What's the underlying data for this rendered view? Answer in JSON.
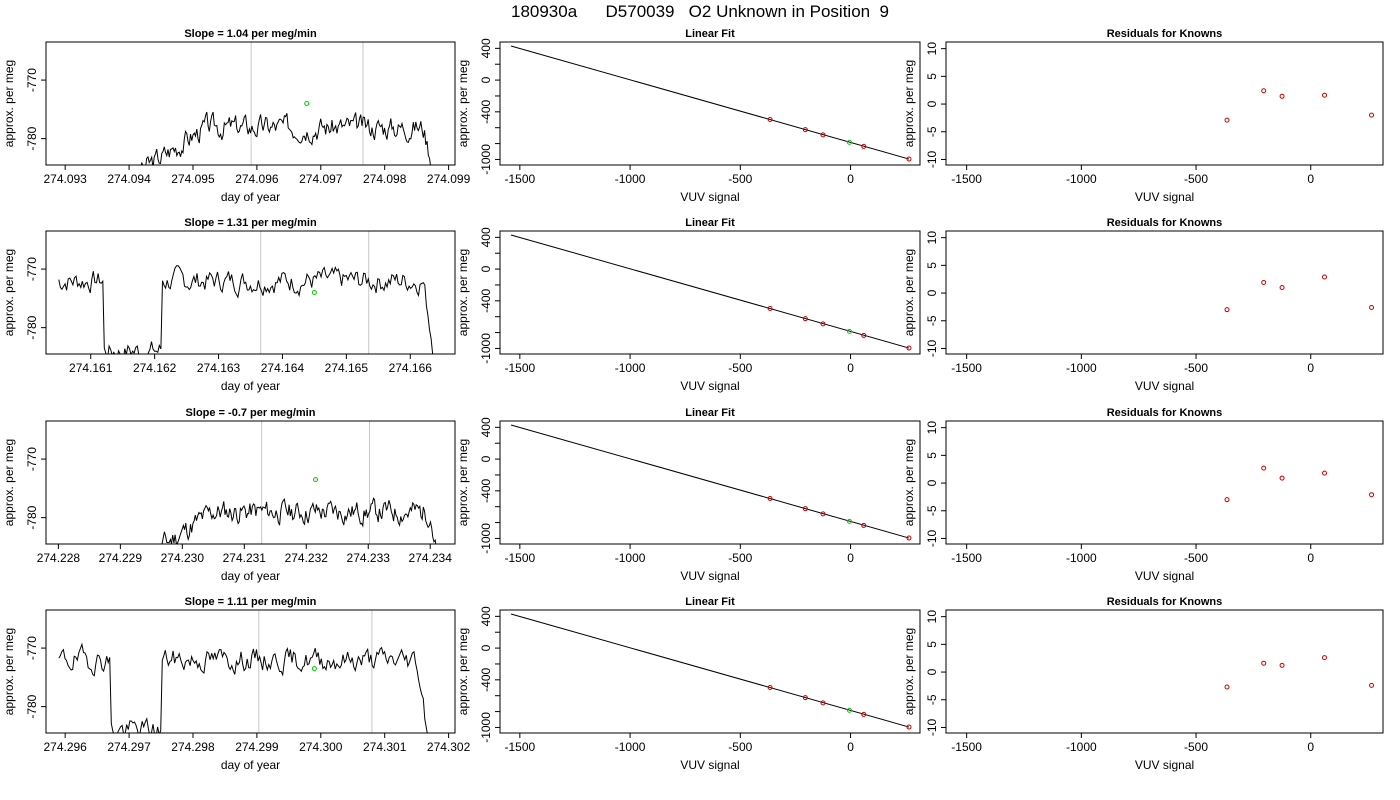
{
  "page_title": "180930a      D570039   O2 Unknown in Position  9",
  "colors": {
    "trace": "#000000",
    "marker": "#00cc00",
    "residual": "#cc0000",
    "gridline": "#c8c8c8"
  },
  "chart_data": [
    {
      "type": "line",
      "row": 0,
      "col": 0,
      "title": "Slope =  1.04  per meg/min",
      "xlabel": "day of year",
      "ylabel": "approx. per meg",
      "xlim": [
        274.0927,
        274.0991
      ],
      "ylim": [
        -784.5,
        -763.5
      ],
      "xticks": [
        274.093,
        274.094,
        274.095,
        274.096,
        274.097,
        274.098,
        274.099
      ],
      "xtick_labels": [
        "274.093",
        "274.094",
        "274.095",
        "274.096",
        "274.097",
        "274.098",
        "274.099"
      ],
      "yticks": [
        -770,
        -780
      ],
      "ytick_labels": [
        "-770",
        "-780"
      ],
      "vlines": [
        274.09591,
        274.09766
      ],
      "marker": {
        "x": 274.09678,
        "y": -774.0
      },
      "trace": {
        "start": 274.0941,
        "end": 274.0988,
        "base": -778,
        "slope": 600,
        "rise_to": 274.0952,
        "drop_from": 274.0986,
        "low": -786,
        "seed": 3
      }
    },
    {
      "type": "scatter",
      "row": 0,
      "col": 1,
      "title": "Linear Fit",
      "xlabel": "VUV signal",
      "ylabel": "approx. per meg",
      "xlim": [
        -1590,
        315
      ],
      "ylim": [
        -1070,
        480
      ],
      "xticks": [
        -1500,
        -1000,
        -500,
        0
      ],
      "xtick_labels": [
        "-1500",
        "-1000",
        "-500",
        "0"
      ],
      "yticks": [
        400,
        0,
        -400,
        -1000
      ],
      "ytick_labels": [
        "400",
        "0",
        "-400",
        "-1000"
      ],
      "yminor": [
        200,
        -200,
        -600,
        -800
      ],
      "line": {
        "x": [
          -1540,
          265
        ],
        "y": [
          430,
          -995
        ]
      },
      "points": {
        "x": [
          -365,
          -205,
          -125,
          60,
          265
        ],
        "y": [
          -497,
          -625,
          -690,
          -836,
          -995
        ]
      },
      "marker": {
        "x": -5,
        "y": -785
      }
    },
    {
      "type": "scatter",
      "row": 0,
      "col": 2,
      "title": "Residuals for Knowns",
      "xlabel": "VUV signal",
      "ylabel": "approx. per meg",
      "xlim": [
        -1590,
        315
      ],
      "ylim": [
        -11,
        11.2
      ],
      "xticks": [
        -1500,
        -1000,
        -500,
        0
      ],
      "xtick_labels": [
        "-1500",
        "-1000",
        "-500",
        "0"
      ],
      "yticks": [
        10,
        5,
        0,
        -5,
        -10
      ],
      "ytick_labels": [
        "10",
        "5",
        "0",
        "-5",
        "-10"
      ],
      "points": {
        "x": [
          -365,
          -205,
          -125,
          60,
          265
        ],
        "y": [
          -2.9,
          2.4,
          1.4,
          1.6,
          -2.0
        ]
      }
    },
    {
      "type": "line",
      "row": 1,
      "col": 0,
      "title": "Slope =  1.31  per meg/min",
      "xlabel": "day of year",
      "ylabel": "approx. per meg",
      "xlim": [
        274.1603,
        274.1667
      ],
      "ylim": [
        -784.5,
        -763.5
      ],
      "xticks": [
        274.161,
        274.162,
        274.163,
        274.164,
        274.165,
        274.166
      ],
      "xtick_labels": [
        "274.161",
        "274.162",
        "274.163",
        "274.164",
        "274.165",
        "274.166"
      ],
      "yticks": [
        -770,
        -780
      ],
      "ytick_labels": [
        "-770",
        "-780"
      ],
      "vlines": [
        274.16366,
        274.16535
      ],
      "marker": {
        "x": 274.1645,
        "y": -774.0
      },
      "trace": {
        "start": 274.1605,
        "end": 274.1664,
        "base": -772,
        "slope": 0,
        "dip_from": 274.1612,
        "dip_to": 274.1621,
        "dip_depth": -784,
        "drop_from": 274.1662,
        "low": -786,
        "seed": 7
      }
    },
    {
      "type": "scatter",
      "row": 1,
      "col": 1,
      "title": "Linear Fit",
      "xlabel": "VUV signal",
      "ylabel": "approx. per meg",
      "xlim": [
        -1590,
        315
      ],
      "ylim": [
        -1070,
        480
      ],
      "xticks": [
        -1500,
        -1000,
        -500,
        0
      ],
      "xtick_labels": [
        "-1500",
        "-1000",
        "-500",
        "0"
      ],
      "yticks": [
        400,
        0,
        -400,
        -1000
      ],
      "ytick_labels": [
        "400",
        "0",
        "-400",
        "-1000"
      ],
      "yminor": [
        200,
        -200,
        -600,
        -800
      ],
      "line": {
        "x": [
          -1540,
          265
        ],
        "y": [
          430,
          -995
        ]
      },
      "points": {
        "x": [
          -365,
          -205,
          -125,
          60,
          265
        ],
        "y": [
          -497,
          -625,
          -690,
          -836,
          -995
        ]
      },
      "marker": {
        "x": -5,
        "y": -785
      }
    },
    {
      "type": "scatter",
      "row": 1,
      "col": 2,
      "title": "Residuals for Knowns",
      "xlabel": "VUV signal",
      "ylabel": "approx. per meg",
      "xlim": [
        -1590,
        315
      ],
      "ylim": [
        -11,
        11.2
      ],
      "xticks": [
        -1500,
        -1000,
        -500,
        0
      ],
      "xtick_labels": [
        "-1500",
        "-1000",
        "-500",
        "0"
      ],
      "yticks": [
        10,
        5,
        0,
        -5,
        -10
      ],
      "ytick_labels": [
        "10",
        "5",
        "0",
        "-5",
        "-10"
      ],
      "points": {
        "x": [
          -365,
          -205,
          -125,
          60,
          265
        ],
        "y": [
          -3.0,
          1.9,
          1.0,
          2.9,
          -2.6
        ]
      }
    },
    {
      "type": "line",
      "row": 2,
      "col": 0,
      "title": "Slope =  -0.7  per meg/min",
      "xlabel": "day of year",
      "ylabel": "approx. per meg",
      "xlim": [
        274.2278,
        274.2344
      ],
      "ylim": [
        -784.5,
        -763.5
      ],
      "xticks": [
        274.228,
        274.229,
        274.23,
        274.231,
        274.232,
        274.233,
        274.234
      ],
      "xtick_labels": [
        "274.228",
        "274.229",
        "274.230",
        "274.231",
        "274.232",
        "274.233",
        "274.234"
      ],
      "yticks": [
        -770,
        -780
      ],
      "ytick_labels": [
        "-770",
        "-780"
      ],
      "vlines": [
        274.23128,
        274.23302
      ],
      "marker": {
        "x": 274.23215,
        "y": -773.5
      },
      "trace": {
        "start": 274.2295,
        "end": 274.2341,
        "base": -779,
        "slope": 700,
        "rise_to": 274.2305,
        "drop_from": 274.234,
        "low": -786,
        "seed": 11
      }
    },
    {
      "type": "scatter",
      "row": 2,
      "col": 1,
      "title": "Linear Fit",
      "xlabel": "VUV signal",
      "ylabel": "approx. per meg",
      "xlim": [
        -1590,
        315
      ],
      "ylim": [
        -1070,
        480
      ],
      "xticks": [
        -1500,
        -1000,
        -500,
        0
      ],
      "xtick_labels": [
        "-1500",
        "-1000",
        "-500",
        "0"
      ],
      "yticks": [
        400,
        0,
        -400,
        -1000
      ],
      "ytick_labels": [
        "400",
        "0",
        "-400",
        "-1000"
      ],
      "yminor": [
        200,
        -200,
        -600,
        -800
      ],
      "line": {
        "x": [
          -1540,
          265
        ],
        "y": [
          430,
          -995
        ]
      },
      "points": {
        "x": [
          -365,
          -205,
          -125,
          60,
          265
        ],
        "y": [
          -497,
          -625,
          -690,
          -836,
          -995
        ]
      },
      "marker": {
        "x": -5,
        "y": -785
      }
    },
    {
      "type": "scatter",
      "row": 2,
      "col": 2,
      "title": "Residuals for Knowns",
      "xlabel": "VUV signal",
      "ylabel": "approx. per meg",
      "xlim": [
        -1590,
        315
      ],
      "ylim": [
        -11,
        11.2
      ],
      "xticks": [
        -1500,
        -1000,
        -500,
        0
      ],
      "xtick_labels": [
        "-1500",
        "-1000",
        "-500",
        "0"
      ],
      "yticks": [
        10,
        5,
        0,
        -5,
        -10
      ],
      "ytick_labels": [
        "10",
        "5",
        "0",
        "-5",
        "-10"
      ],
      "points": {
        "x": [
          -365,
          -205,
          -125,
          60,
          265
        ],
        "y": [
          -3.0,
          2.7,
          0.9,
          1.8,
          -2.1
        ]
      }
    },
    {
      "type": "line",
      "row": 3,
      "col": 0,
      "title": "Slope =  1.11  per meg/min",
      "xlabel": "day of year",
      "ylabel": "approx. per meg",
      "xlim": [
        274.2957,
        274.3021
      ],
      "ylim": [
        -784.5,
        -763.5
      ],
      "xticks": [
        274.296,
        274.297,
        274.298,
        274.299,
        274.3,
        274.301,
        274.302
      ],
      "xtick_labels": [
        "274.296",
        "274.297",
        "274.298",
        "274.299",
        "274.300",
        "274.301",
        "274.302"
      ],
      "yticks": [
        -770,
        -780
      ],
      "ytick_labels": [
        "-770",
        "-780"
      ],
      "vlines": [
        274.29903,
        274.3008
      ],
      "marker": {
        "x": 274.2999,
        "y": -773.5
      },
      "trace": {
        "start": 274.2959,
        "end": 274.3017,
        "base": -772,
        "slope": 0,
        "dip_from": 274.2967,
        "dip_to": 274.2975,
        "dip_depth": -784,
        "drop_from": 274.3015,
        "low": -786,
        "seed": 19
      }
    },
    {
      "type": "scatter",
      "row": 3,
      "col": 1,
      "title": "Linear Fit",
      "xlabel": "VUV signal",
      "ylabel": "approx. per meg",
      "xlim": [
        -1590,
        315
      ],
      "ylim": [
        -1070,
        480
      ],
      "xticks": [
        -1500,
        -1000,
        -500,
        0
      ],
      "xtick_labels": [
        "-1500",
        "-1000",
        "-500",
        "0"
      ],
      "yticks": [
        400,
        0,
        -400,
        -1000
      ],
      "ytick_labels": [
        "400",
        "0",
        "-400",
        "-1000"
      ],
      "yminor": [
        200,
        -200,
        -600,
        -800
      ],
      "line": {
        "x": [
          -1540,
          265
        ],
        "y": [
          430,
          -995
        ]
      },
      "points": {
        "x": [
          -365,
          -205,
          -125,
          60,
          265
        ],
        "y": [
          -497,
          -625,
          -690,
          -836,
          -995
        ]
      },
      "marker": {
        "x": -5,
        "y": -785
      }
    },
    {
      "type": "scatter",
      "row": 3,
      "col": 2,
      "title": "Residuals for Knowns",
      "xlabel": "VUV signal",
      "ylabel": "approx. per meg",
      "xlim": [
        -1590,
        315
      ],
      "ylim": [
        -11,
        11.2
      ],
      "xticks": [
        -1500,
        -1000,
        -500,
        0
      ],
      "xtick_labels": [
        "-1500",
        "-1000",
        "-500",
        "0"
      ],
      "yticks": [
        10,
        5,
        0,
        -5,
        -10
      ],
      "ytick_labels": [
        "10",
        "5",
        "0",
        "-5",
        "-10"
      ],
      "points": {
        "x": [
          -365,
          -205,
          -125,
          60,
          265
        ],
        "y": [
          -2.7,
          1.6,
          1.2,
          2.6,
          -2.4
        ]
      }
    }
  ]
}
